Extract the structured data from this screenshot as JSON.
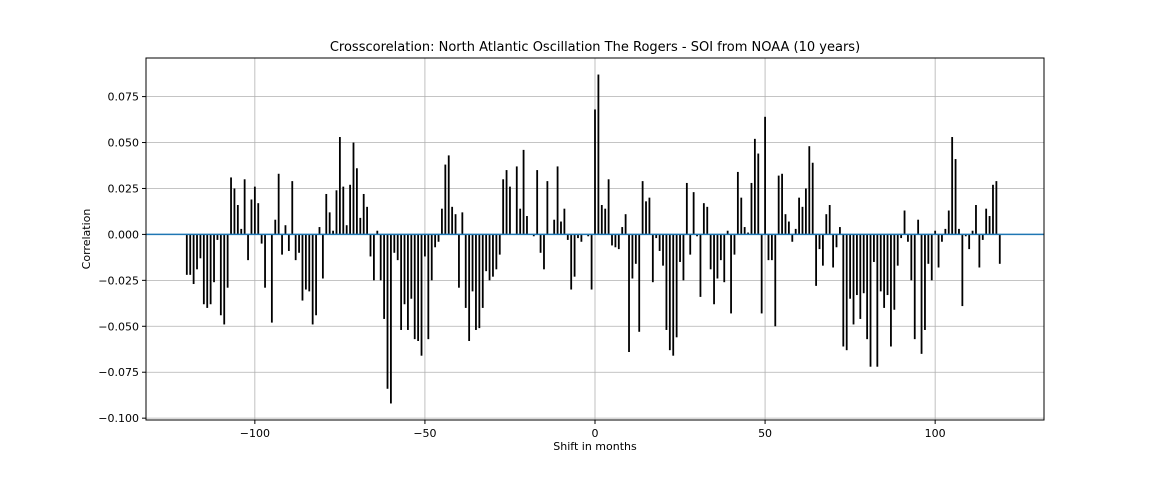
{
  "chart_data": {
    "type": "bar",
    "title": "Crosscorelation: North Atlantic Oscillation The Rogers - SOI from NOAA (10 years)",
    "xlabel": "Shift in months",
    "ylabel": "Correlation",
    "xlim": [
      -132,
      132
    ],
    "ylim": [
      -0.101,
      0.096
    ],
    "xticks": [
      -100,
      -50,
      0,
      50,
      100
    ],
    "xtick_labels": [
      "−100",
      "−50",
      "0",
      "50",
      "100"
    ],
    "yticks": [
      -0.1,
      -0.075,
      -0.05,
      -0.025,
      0.0,
      0.025,
      0.05,
      0.075
    ],
    "ytick_labels": [
      "−0.100",
      "−0.075",
      "−0.050",
      "−0.025",
      "0.000",
      "0.025",
      "0.050",
      "0.075"
    ],
    "grid": true,
    "bar_color": "#000000",
    "baseline_color": "#1f77b4",
    "x_start": -120,
    "x_step": 1,
    "values": [
      -0.022,
      -0.022,
      -0.027,
      -0.019,
      -0.013,
      -0.038,
      -0.04,
      -0.038,
      -0.026,
      -0.003,
      -0.044,
      -0.049,
      -0.029,
      0.031,
      0.025,
      0.016,
      0.003,
      0.03,
      -0.014,
      0.019,
      0.026,
      0.017,
      -0.005,
      -0.029,
      0.0,
      -0.048,
      0.008,
      0.033,
      -0.011,
      0.005,
      -0.009,
      0.029,
      -0.014,
      -0.01,
      -0.036,
      -0.03,
      -0.031,
      -0.049,
      -0.044,
      0.004,
      -0.024,
      0.022,
      0.012,
      0.002,
      0.024,
      0.053,
      0.026,
      0.005,
      0.027,
      0.05,
      0.036,
      0.009,
      0.022,
      0.015,
      -0.012,
      -0.025,
      0.002,
      -0.025,
      -0.046,
      -0.084,
      -0.092,
      -0.01,
      -0.014,
      -0.052,
      -0.038,
      -0.052,
      -0.035,
      -0.057,
      -0.058,
      -0.066,
      -0.012,
      -0.057,
      -0.025,
      -0.007,
      -0.004,
      0.014,
      0.038,
      0.043,
      0.015,
      0.011,
      -0.029,
      0.012,
      -0.04,
      -0.058,
      -0.031,
      -0.052,
      -0.051,
      -0.04,
      -0.02,
      -0.025,
      -0.023,
      -0.019,
      -0.011,
      0.03,
      0.035,
      0.026,
      0.0,
      0.037,
      0.014,
      0.046,
      0.01,
      0.0,
      -0.001,
      0.035,
      -0.01,
      -0.019,
      0.029,
      0.0,
      0.008,
      0.037,
      0.007,
      0.014,
      -0.003,
      -0.03,
      -0.023,
      -0.002,
      -0.004,
      0.0,
      -0.001,
      -0.03,
      0.068,
      0.087,
      0.016,
      0.014,
      0.03,
      -0.006,
      -0.007,
      -0.008,
      0.004,
      0.011,
      -0.064,
      -0.024,
      -0.016,
      -0.053,
      0.029,
      0.018,
      0.02,
      -0.026,
      -0.002,
      -0.009,
      -0.017,
      -0.052,
      -0.063,
      -0.066,
      -0.056,
      -0.015,
      -0.025,
      0.028,
      -0.011,
      0.023,
      -0.001,
      -0.034,
      0.017,
      0.015,
      -0.019,
      -0.038,
      -0.024,
      -0.014,
      -0.026,
      0.002,
      -0.043,
      -0.011,
      0.034,
      0.02,
      0.004,
      0.001,
      0.028,
      0.052,
      0.044,
      -0.043,
      0.064,
      -0.014,
      -0.014,
      -0.05,
      0.032,
      0.033,
      0.011,
      0.007,
      -0.004,
      0.003,
      0.02,
      0.015,
      0.025,
      0.048,
      0.039,
      -0.028,
      -0.008,
      -0.017,
      0.011,
      0.016,
      -0.018,
      -0.007,
      0.004,
      -0.061,
      -0.063,
      -0.035,
      -0.049,
      -0.033,
      -0.046,
      -0.032,
      -0.057,
      -0.072,
      -0.015,
      -0.072,
      -0.031,
      -0.04,
      -0.033,
      -0.061,
      -0.041,
      -0.017,
      -0.002,
      0.013,
      -0.004,
      -0.025,
      -0.057,
      0.008,
      -0.065,
      -0.052,
      -0.016,
      -0.025,
      0.002,
      -0.018,
      -0.004,
      0.003,
      0.013,
      0.053,
      0.041,
      0.003,
      -0.039,
      -0.001,
      -0.008,
      0.002,
      0.016,
      -0.018,
      -0.003,
      0.014,
      0.01,
      0.027,
      0.029,
      -0.016
    ]
  }
}
